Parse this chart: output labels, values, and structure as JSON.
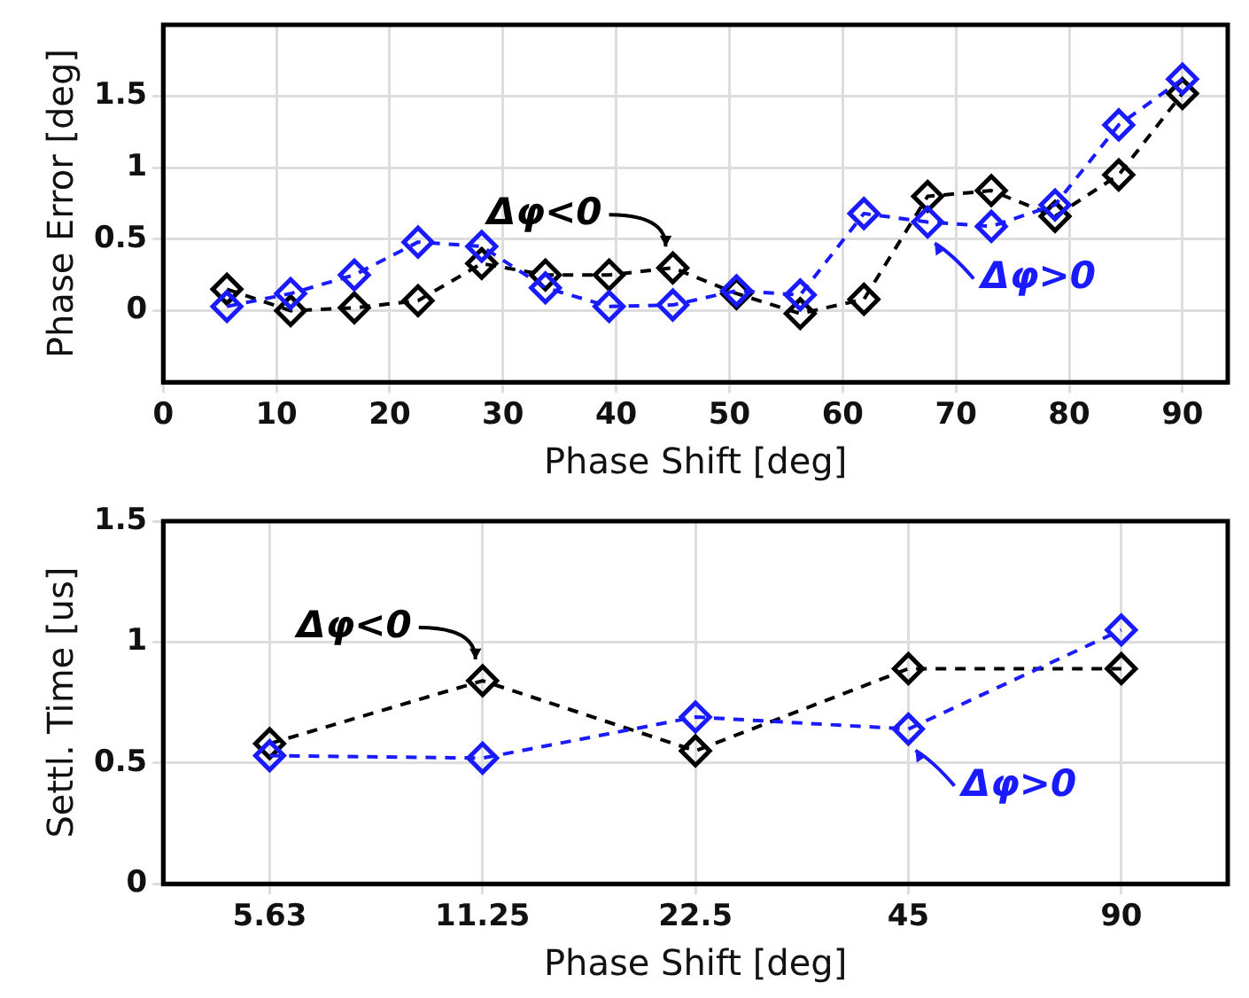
{
  "chart_data": [
    {
      "type": "line",
      "xlabel": "Phase Shift [deg]",
      "ylabel": "Phase Error [deg]",
      "x": [
        5.625,
        11.25,
        16.875,
        22.5,
        28.125,
        33.75,
        39.375,
        45,
        50.625,
        56.25,
        61.875,
        67.5,
        73.125,
        78.75,
        84.375,
        90
      ],
      "series": [
        {
          "color": "#000000",
          "values": [
            0.15,
            0.0,
            0.02,
            0.07,
            0.33,
            0.25,
            0.25,
            0.3,
            0.12,
            -0.02,
            0.08,
            0.8,
            0.84,
            0.66,
            0.95,
            1.52
          ]
        },
        {
          "color": "#1a1aff",
          "values": [
            0.03,
            0.12,
            0.25,
            0.48,
            0.45,
            0.16,
            0.03,
            0.04,
            0.14,
            0.11,
            0.68,
            0.62,
            0.59,
            0.74,
            1.3,
            1.62
          ]
        }
      ],
      "xlim": [
        0,
        94
      ],
      "xticks": [
        0,
        10,
        20,
        30,
        40,
        50,
        60,
        70,
        80,
        90
      ],
      "ylim": [
        -0.5,
        2
      ],
      "yticks": [
        0,
        0.5,
        1,
        1.5
      ],
      "annotations": [
        {
          "text": "Δφ<0",
          "x": 45,
          "y": 0.3
        },
        {
          "text": "Δφ>0",
          "x": 67.5,
          "y": 0.62
        }
      ],
      "grid": true,
      "legend": false,
      "marker": "diamond",
      "line_style": "dashed"
    },
    {
      "type": "line",
      "xlabel": "Phase Shift [deg]",
      "ylabel": "Settl. Time [us]",
      "categories": [
        "5.63",
        "11.25",
        "22.5",
        "45",
        "90"
      ],
      "series": [
        {
          "color": "#000000",
          "values": [
            0.58,
            0.84,
            0.55,
            0.89,
            0.89
          ]
        },
        {
          "color": "#1a1aff",
          "values": [
            0.53,
            0.52,
            0.69,
            0.64,
            1.05
          ]
        }
      ],
      "ylim": [
        0,
        1.5
      ],
      "yticks": [
        0,
        0.5,
        1,
        1.5
      ],
      "annotations": [
        {
          "text": "Δφ<0",
          "x": "11.25",
          "y": 0.84
        },
        {
          "text": "Δφ>0",
          "x": "45",
          "y": 0.64
        }
      ],
      "grid": true,
      "legend": false,
      "marker": "diamond",
      "line_style": "dashed"
    }
  ]
}
